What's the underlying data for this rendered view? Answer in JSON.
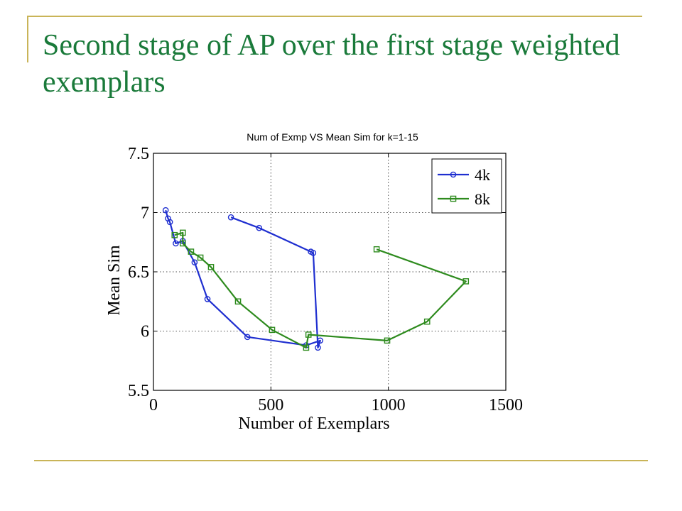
{
  "slide": {
    "title": "Second stage of AP over the first stage weighted exemplars"
  },
  "colors": {
    "title": "#1a7a3a",
    "accent_rule": "#c9b458",
    "series_4k": "#1f2fd0",
    "series_8k": "#2e8b1e"
  },
  "chart_data": {
    "type": "line",
    "title": "Num of Exmp VS Mean Sim for k=1-15",
    "xlabel": "Number of Exemplars",
    "ylabel": "Mean Sim",
    "xlim": [
      0,
      1500
    ],
    "ylim": [
      5.5,
      7.5
    ],
    "xticks": [
      "0",
      "500",
      "1000",
      "1500"
    ],
    "yticks": [
      "5.5",
      "6",
      "6.5",
      "7",
      "7.5"
    ],
    "xtick_values": [
      0,
      500,
      1000,
      1500
    ],
    "ytick_values": [
      5.5,
      6,
      6.5,
      7,
      7.5
    ],
    "grid": true,
    "legend_position": "top-right",
    "series": [
      {
        "name": "4k",
        "marker": "circle",
        "x": [
          330,
          450,
          670,
          680,
          700,
          710,
          650,
          400,
          230,
          175,
          125,
          95,
          70,
          62,
          52
        ],
        "y": [
          6.96,
          6.87,
          6.67,
          6.66,
          5.86,
          5.92,
          5.88,
          5.95,
          6.27,
          6.58,
          6.76,
          6.74,
          6.92,
          6.95,
          7.02
        ]
      },
      {
        "name": "8k",
        "marker": "square",
        "x": [
          950,
          1330,
          1165,
          995,
          660,
          650,
          505,
          360,
          245,
          200,
          160,
          125,
          125,
          90
        ],
        "y": [
          6.69,
          6.42,
          6.08,
          5.92,
          5.97,
          5.86,
          6.01,
          6.25,
          6.54,
          6.62,
          6.67,
          6.74,
          6.83,
          6.81
        ]
      }
    ]
  }
}
